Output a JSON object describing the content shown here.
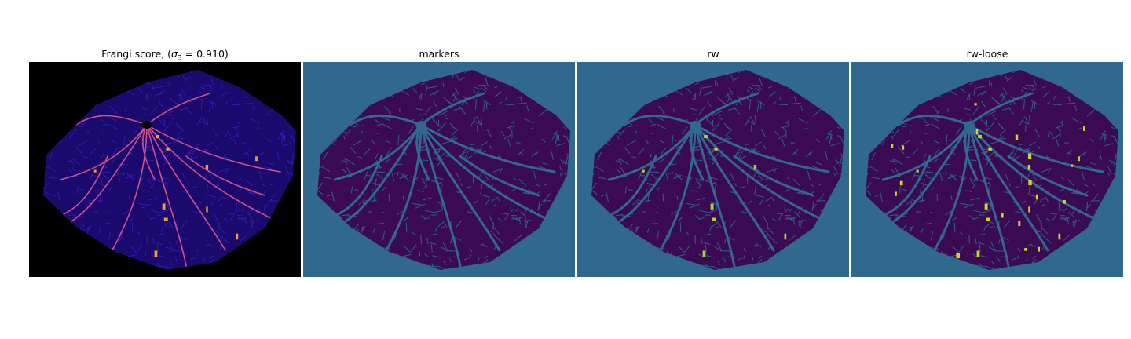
{
  "figure": {
    "panels": [
      {
        "title_prefix": "Frangi score, (",
        "title_symbol": "σ",
        "title_sub": "3",
        "title_suffix": " = 0.910)",
        "bg": "#000000",
        "fill": "#1a0a6e",
        "vein": "#d24f8a",
        "highlight": "#f9a545"
      },
      {
        "title": "markers",
        "bg": "#31688e",
        "fill": "#3a0a52",
        "vein": "#31688e"
      },
      {
        "title": "rw",
        "bg": "#31688e",
        "fill": "#3a0a52",
        "vein": "#31688e",
        "highlight": "#b5de2b"
      },
      {
        "title": "rw-loose",
        "bg": "#31688e",
        "fill": "#3a0a52",
        "vein": "#31688e",
        "highlight": "#d8e219"
      }
    ]
  }
}
